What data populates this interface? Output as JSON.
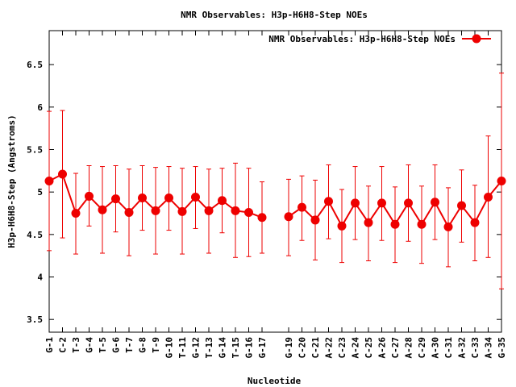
{
  "chart_data": {
    "type": "line",
    "title": "NMR Observables: H3p-H6H8-Step NOEs",
    "xlabel": "Nucleotide",
    "ylabel": "H3p-H6H8-Step (Angstroms)",
    "ylim": [
      3.35,
      6.9
    ],
    "yticks": [
      "3.5",
      "4",
      "4.5",
      "5",
      "5.5",
      "6",
      "6.5"
    ],
    "xlim": [
      1,
      35
    ],
    "legend_position": "top-right",
    "grid": false,
    "colors": {
      "series": "#ee0000",
      "frame": "#000000"
    },
    "categories": [
      "G-1",
      "C-2",
      "T-3",
      "G-4",
      "T-5",
      "G-6",
      "T-7",
      "G-8",
      "T-9",
      "G-10",
      "T-11",
      "G-12",
      "T-13",
      "G-14",
      "T-15",
      "G-16",
      "G-17",
      "G-19",
      "C-20",
      "C-21",
      "A-22",
      "C-23",
      "A-24",
      "C-25",
      "A-26",
      "C-27",
      "A-28",
      "C-29",
      "A-30",
      "C-31",
      "A-32",
      "C-33",
      "A-34",
      "G-35"
    ],
    "x": [
      1,
      2,
      3,
      4,
      5,
      6,
      7,
      8,
      9,
      10,
      11,
      12,
      13,
      14,
      15,
      16,
      17,
      19,
      20,
      21,
      22,
      23,
      24,
      25,
      26,
      27,
      28,
      29,
      30,
      31,
      32,
      33,
      34,
      35
    ],
    "series": [
      {
        "name": "NMR Observables: H3p-H6H8-Step NOEs",
        "values": [
          5.13,
          5.21,
          4.75,
          4.95,
          4.79,
          4.92,
          4.76,
          4.93,
          4.78,
          4.93,
          4.77,
          4.94,
          4.78,
          4.9,
          4.78,
          4.76,
          4.7,
          4.71,
          4.82,
          4.67,
          4.89,
          4.6,
          4.87,
          4.64,
          4.87,
          4.62,
          4.87,
          4.62,
          4.88,
          4.59,
          4.84,
          4.64,
          4.94,
          5.13
        ],
        "error_low": [
          4.31,
          4.46,
          4.27,
          4.6,
          4.28,
          4.53,
          4.25,
          4.55,
          4.27,
          4.55,
          4.27,
          4.57,
          4.28,
          4.52,
          4.23,
          4.24,
          4.28,
          4.25,
          4.43,
          4.2,
          4.45,
          4.17,
          4.44,
          4.19,
          4.43,
          4.17,
          4.42,
          4.16,
          4.44,
          4.12,
          4.41,
          4.19,
          4.23,
          3.86
        ],
        "error_high": [
          5.95,
          5.96,
          5.22,
          5.31,
          5.3,
          5.31,
          5.27,
          5.31,
          5.29,
          5.3,
          5.28,
          5.3,
          5.27,
          5.28,
          5.34,
          5.28,
          5.12,
          5.15,
          5.19,
          5.14,
          5.32,
          5.03,
          5.3,
          5.07,
          5.3,
          5.06,
          5.32,
          5.07,
          5.32,
          5.05,
          5.26,
          5.08,
          5.66,
          6.4
        ]
      }
    ]
  }
}
